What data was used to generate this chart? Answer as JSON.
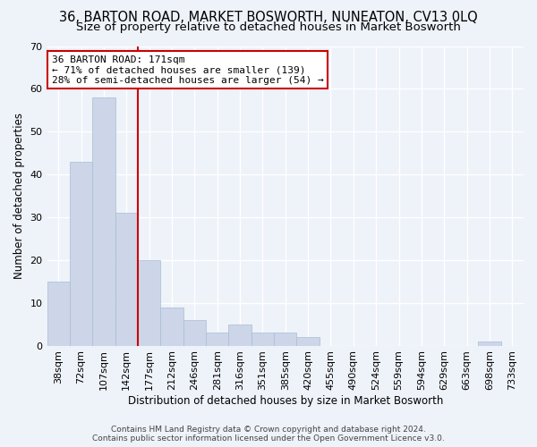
{
  "title": "36, BARTON ROAD, MARKET BOSWORTH, NUNEATON, CV13 0LQ",
  "subtitle": "Size of property relative to detached houses in Market Bosworth",
  "xlabel": "Distribution of detached houses by size in Market Bosworth",
  "ylabel": "Number of detached properties",
  "bar_color": "#ccd6e8",
  "bar_edge_color": "#a8bdd4",
  "x_labels": [
    "38sqm",
    "72sqm",
    "107sqm",
    "142sqm",
    "177sqm",
    "212sqm",
    "246sqm",
    "281sqm",
    "316sqm",
    "351sqm",
    "385sqm",
    "420sqm",
    "455sqm",
    "490sqm",
    "524sqm",
    "559sqm",
    "594sqm",
    "629sqm",
    "663sqm",
    "698sqm",
    "733sqm"
  ],
  "bar_heights": [
    15,
    43,
    58,
    31,
    20,
    9,
    6,
    3,
    5,
    3,
    3,
    2,
    0,
    0,
    0,
    0,
    0,
    0,
    0,
    1,
    0
  ],
  "vline_x_index": 4,
  "vline_color": "#cc0000",
  "ylim": [
    0,
    70
  ],
  "yticks": [
    0,
    10,
    20,
    30,
    40,
    50,
    60,
    70
  ],
  "annotation_line1": "36 BARTON ROAD: 171sqm",
  "annotation_line2": "← 71% of detached houses are smaller (139)",
  "annotation_line3": "28% of semi-detached houses are larger (54) →",
  "annotation_box_edge_color": "#cc0000",
  "footer": "Contains HM Land Registry data © Crown copyright and database right 2024.\nContains public sector information licensed under the Open Government Licence v3.0.",
  "background_color": "#eef2f9",
  "grid_color": "#ffffff",
  "title_fontsize": 10.5,
  "subtitle_fontsize": 9.5,
  "xlabel_fontsize": 8.5,
  "ylabel_fontsize": 8.5,
  "tick_fontsize": 8,
  "annot_fontsize": 8,
  "footer_fontsize": 6.5
}
